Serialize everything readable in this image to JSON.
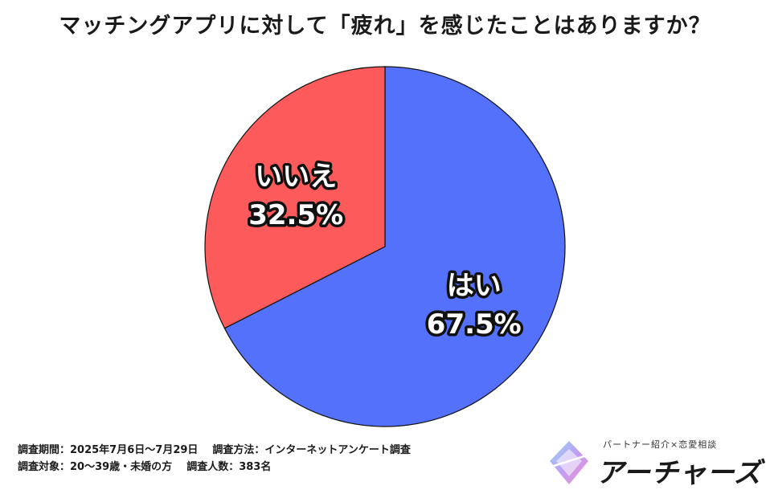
{
  "chart_data": {
    "type": "pie",
    "title": "マッチングアプリに対して「疲れ」を感じたことはありますか？",
    "slices": [
      {
        "label": "はい",
        "value": 67.5,
        "value_label": "67.5%",
        "color": "#5471fc"
      },
      {
        "label": "いいえ",
        "value": 32.5,
        "value_label": "32.5%",
        "color": "#fd5b5b"
      }
    ],
    "start": "12 o'clock",
    "direction": "clockwise"
  },
  "footer": {
    "period": "調査期間：2025年7月6日〜7月29日",
    "method": "調査方法：インターネットアンケート調査",
    "target": "調査対象：20〜39歳・未婚の方",
    "respondents": "調査人数：383名"
  },
  "brand": {
    "tagline": "パートナー紹介×恋愛相談",
    "name": "アーチャーズ",
    "logo_icon": "diamond-gradient-logo-icon"
  }
}
